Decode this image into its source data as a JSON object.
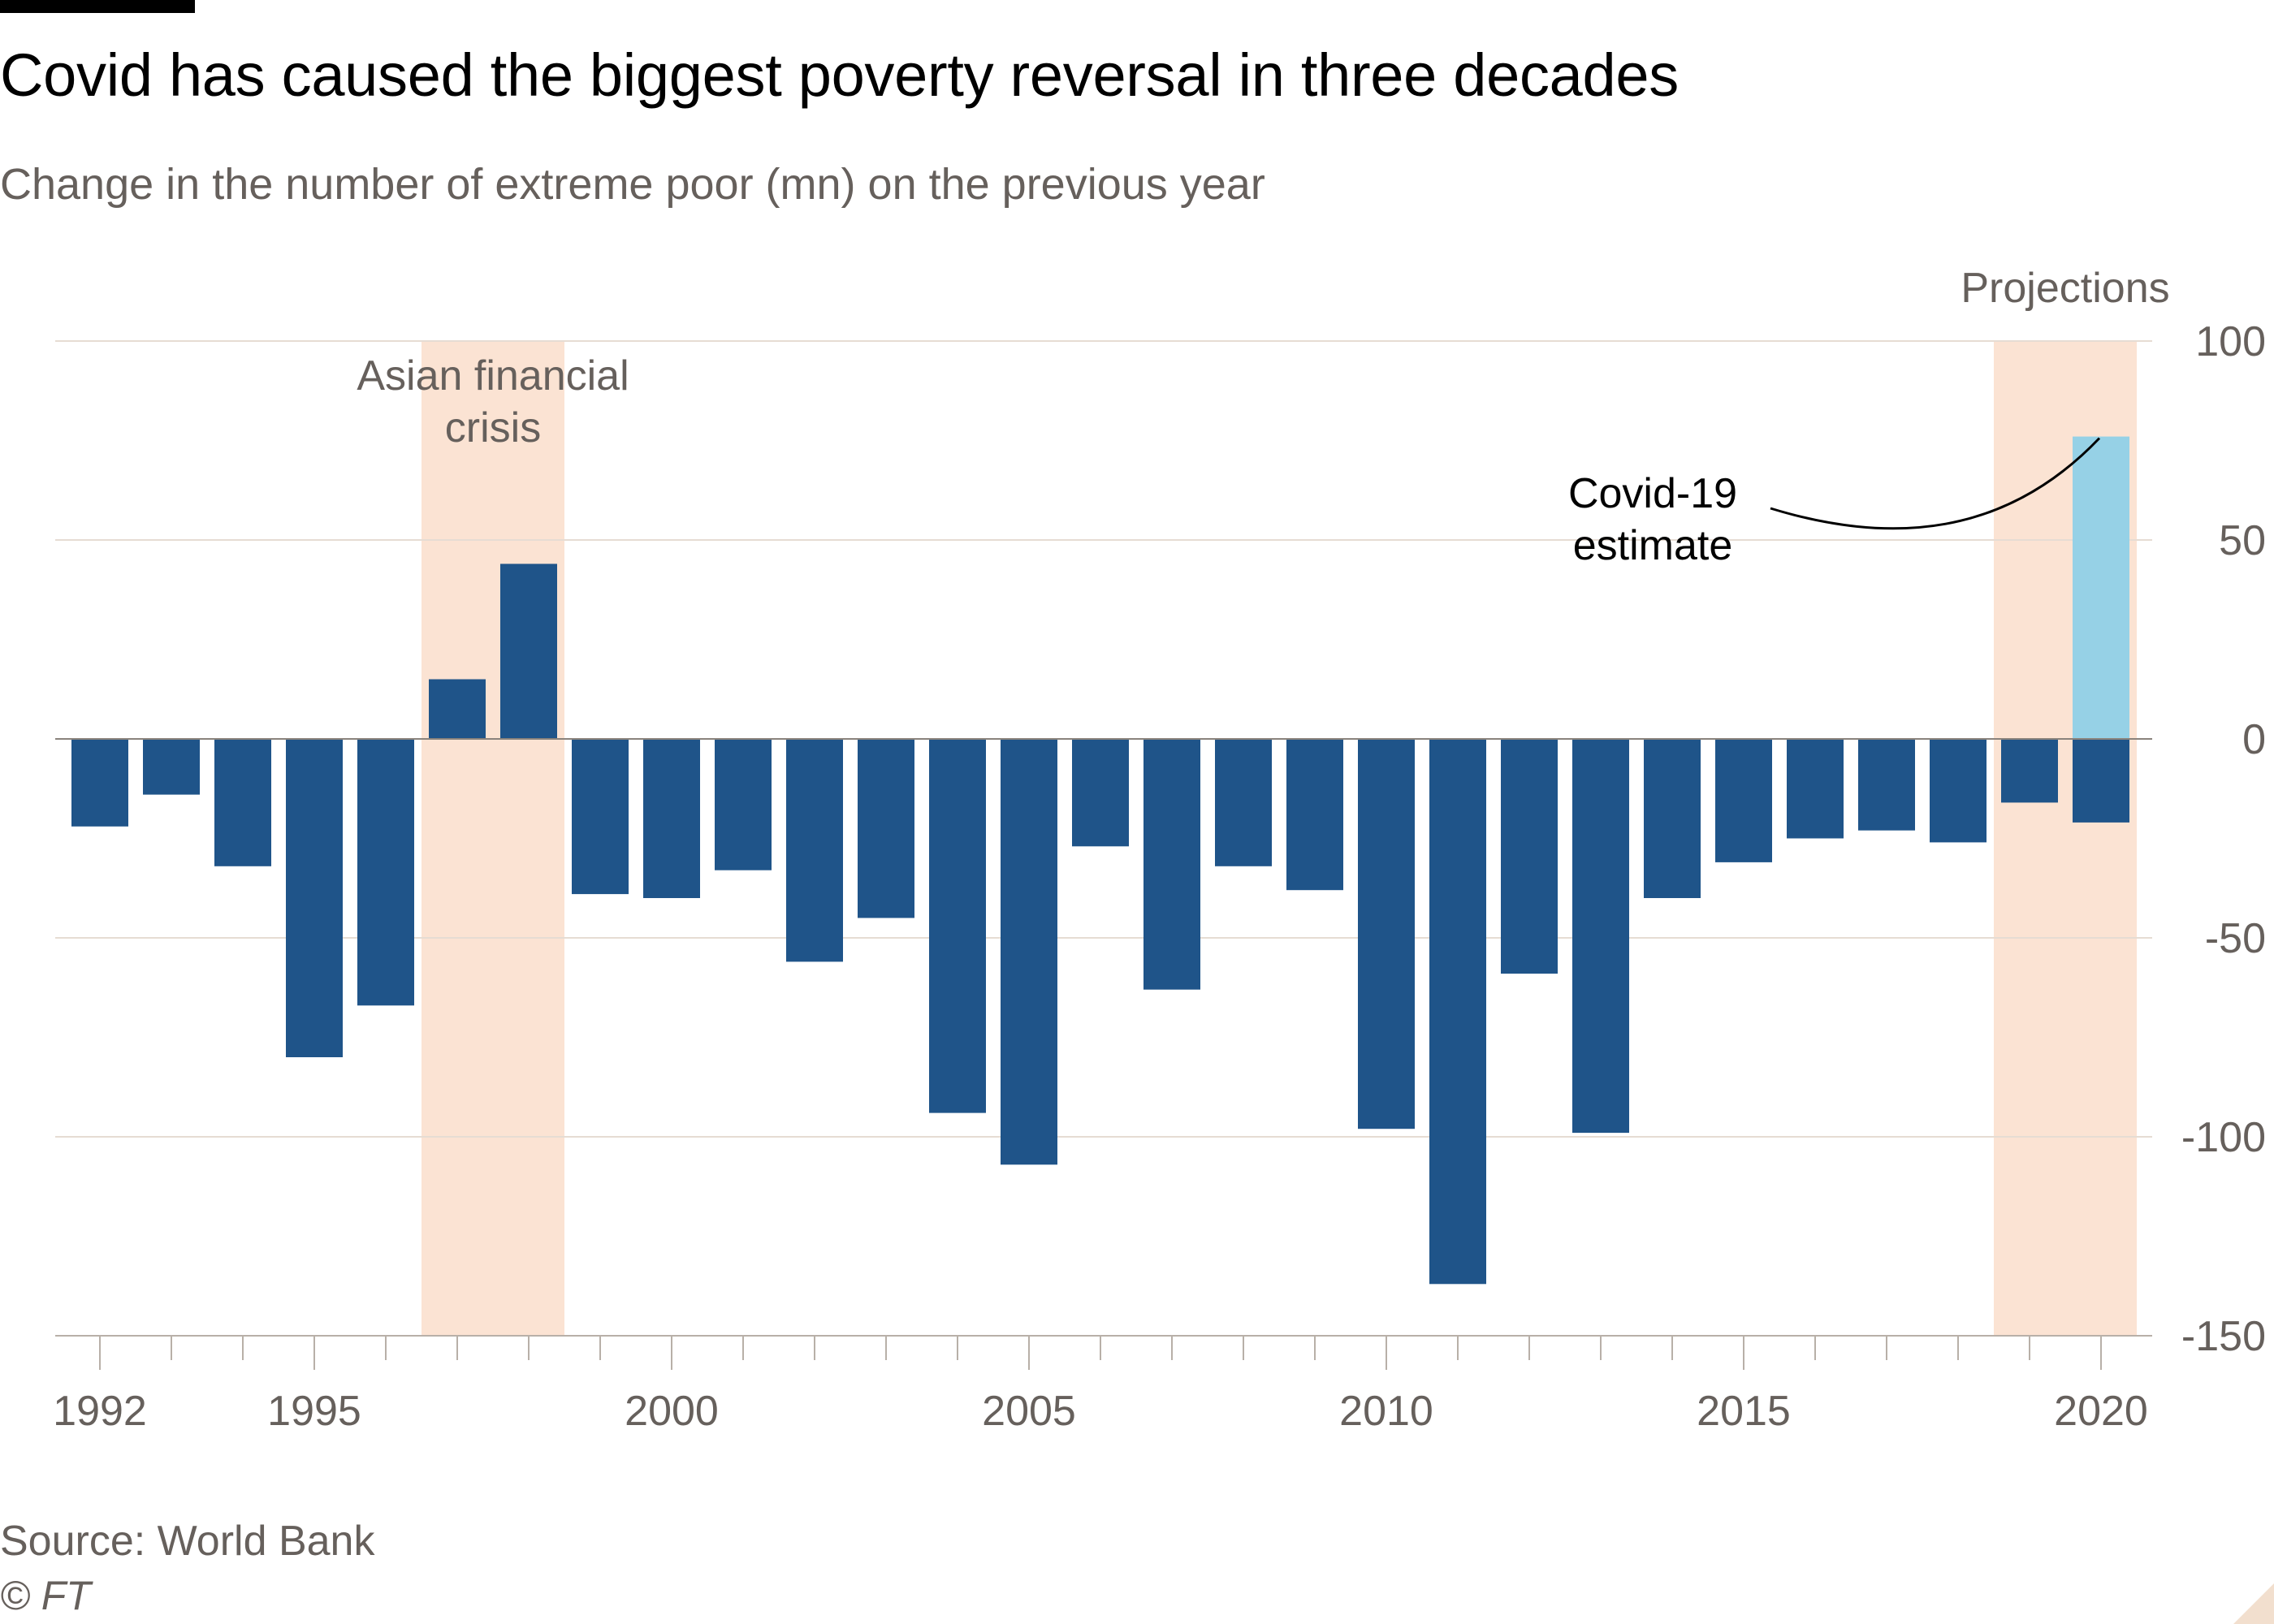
{
  "title": "Covid has caused the biggest poverty reversal in three decades",
  "subtitle": "Change in the number of extreme poor (mn) on the previous year",
  "source": "Source: World Bank",
  "copyright": "© FT",
  "colors": {
    "bar": "#1f5489",
    "estimate_bar": "#96d1e6",
    "highlight": "#fbe3d3",
    "grid": "#e6dcd3",
    "axis_text": "#66605c"
  },
  "chart_data": {
    "type": "bar",
    "categories": [
      "1992",
      "1993",
      "1994",
      "1995",
      "1996",
      "1997",
      "1998",
      "1999",
      "2000",
      "2001",
      "2002",
      "2003",
      "2004",
      "2005",
      "2006",
      "2007",
      "2008",
      "2009",
      "2010",
      "2011",
      "2012",
      "2013",
      "2014",
      "2015",
      "2016",
      "2017",
      "2018",
      "2019",
      "2020"
    ],
    "values": [
      -22,
      -14,
      -32,
      -80,
      -67,
      15,
      44,
      -39,
      -40,
      -33,
      -56,
      -45,
      -94,
      -107,
      -27,
      -63,
      -32,
      -38,
      -98,
      -137,
      -59,
      -99,
      -40,
      -31,
      -25,
      -23,
      -26,
      -16,
      -21
    ],
    "estimate": {
      "category": "2020",
      "value": 76
    },
    "ylim": [
      -150,
      100
    ],
    "yticks": [
      100,
      50,
      0,
      -50,
      -100,
      -150
    ],
    "x_tick_labels": [
      "1992",
      "1995",
      "2000",
      "2005",
      "2010",
      "2015",
      "2020"
    ],
    "xlabel": "",
    "ylabel": "",
    "grid": true,
    "y_axis_position": "right",
    "annotations": {
      "highlights": [
        {
          "label_lines": [
            "Asian financial",
            "crisis"
          ],
          "from": "1997",
          "to": "1998"
        },
        {
          "label_lines": [
            "Projections"
          ],
          "from": "2019",
          "to": "2020"
        }
      ],
      "callout": {
        "lines": [
          "Covid-19",
          "estimate"
        ],
        "target": "2020"
      }
    }
  }
}
